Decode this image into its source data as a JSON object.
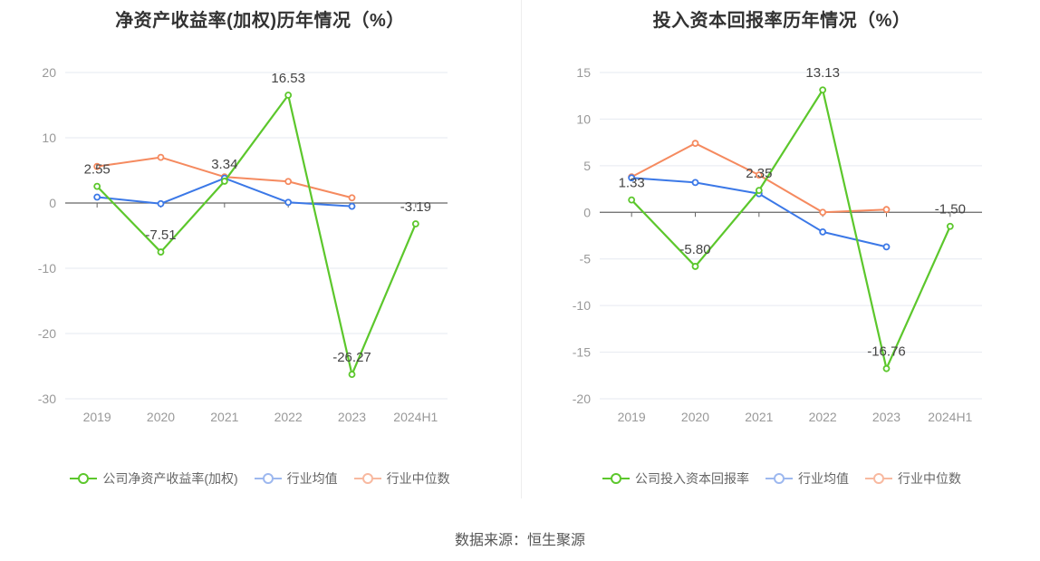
{
  "colors": {
    "company": "#5cc72c",
    "avg": "#3b78e7",
    "median": "#f58a5f",
    "grid": "#e6e9f0",
    "axis": "#666666",
    "tick": "#999999"
  },
  "source_text": "数据来源：恒生聚源",
  "chart_data": [
    {
      "type": "line",
      "title": "净资产收益率(加权)历年情况（%）",
      "categories": [
        "2019",
        "2020",
        "2021",
        "2022",
        "2023",
        "2024H1"
      ],
      "ylim": [
        -30,
        20
      ],
      "yticks": [
        20,
        10,
        0,
        -10,
        -20,
        -30
      ],
      "grid": true,
      "legend_position": "bottom",
      "series": [
        {
          "name": "公司净资产收益率(加权)",
          "role": "company",
          "values": [
            2.55,
            -7.51,
            3.34,
            16.53,
            -26.27,
            -3.19
          ],
          "labels": [
            "2.55",
            "-7.51",
            "3.34",
            "16.53",
            "-26.27",
            "-3.19"
          ]
        },
        {
          "name": "行业均值",
          "role": "avg",
          "values": [
            0.9,
            -0.1,
            3.8,
            0.1,
            -0.5,
            null
          ]
        },
        {
          "name": "行业中位数",
          "role": "median",
          "values": [
            5.6,
            7.0,
            4.0,
            3.3,
            0.8,
            null
          ]
        }
      ]
    },
    {
      "type": "line",
      "title": "投入资本回报率历年情况（%）",
      "categories": [
        "2019",
        "2020",
        "2021",
        "2022",
        "2023",
        "2024H1"
      ],
      "ylim": [
        -20,
        15
      ],
      "yticks": [
        15,
        10,
        5,
        0,
        -5,
        -10,
        -15,
        -20
      ],
      "grid": true,
      "legend_position": "bottom",
      "series": [
        {
          "name": "公司投入资本回报率",
          "role": "company",
          "values": [
            1.33,
            -5.8,
            2.35,
            13.13,
            -16.76,
            -1.5
          ],
          "labels": [
            "1.33",
            "-5.80",
            "2.35",
            "13.13",
            "-16.76",
            "-1.50"
          ]
        },
        {
          "name": "行业均值",
          "role": "avg",
          "values": [
            3.7,
            3.2,
            2.0,
            -2.1,
            -3.7,
            null
          ]
        },
        {
          "name": "行业中位数",
          "role": "median",
          "values": [
            3.8,
            7.4,
            4.0,
            0.0,
            0.3,
            null
          ]
        }
      ]
    }
  ]
}
